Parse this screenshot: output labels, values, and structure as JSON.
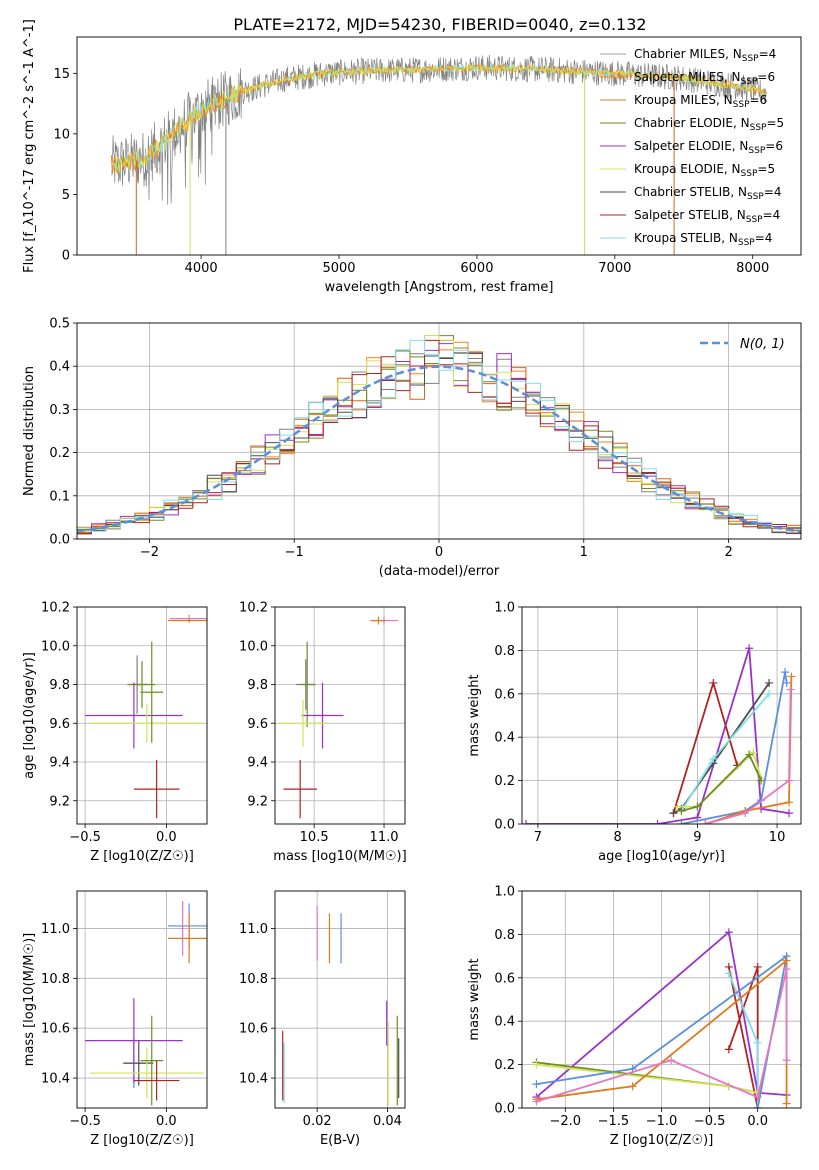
{
  "figure_title": "PLATE=2172, MJD=54230, FIBERID=0040, z=0.132",
  "colors": {
    "chabrier_miles": "#808080",
    "salpeter_miles": "#ff7f0e",
    "kroupa_miles": "#d2691e",
    "chabrier_elodie": "#6b8e23",
    "salpeter_elodie": "#9932cc",
    "kroupa_elodie": "#d4e157",
    "chabrier_stelib": "#4d4d4d",
    "salpeter_stelib": "#b22222",
    "kroupa_stelib": "#80deea",
    "gauss": "#5b8fd9",
    "pink": "#e377c2",
    "blue": "#5b8fd9",
    "orange": "#e07b1c"
  },
  "chart_data": [
    {
      "id": "spectrum",
      "type": "line",
      "xlabel": "wavelength [Angstrom, rest frame]",
      "ylabel": "Flux [f_λ10^-17 erg cm^-2 s^-1 A^-1]",
      "xlim": [
        3100,
        8350
      ],
      "ylim": [
        0,
        18
      ],
      "xticks": [
        4000,
        5000,
        6000,
        7000,
        8000
      ],
      "yticks": [
        0,
        5,
        10,
        15
      ],
      "grid": false,
      "legend_position": "right",
      "legend": [
        {
          "label": "Chabrier MILES, N",
          "sub": "SSP",
          "eq": "=4",
          "color": "#a0a0a0"
        },
        {
          "label": "Salpeter MILES, N",
          "sub": "SSP",
          "eq": "=6",
          "color": "#ff7f0e"
        },
        {
          "label": "Kroupa MILES, N",
          "sub": "SSP",
          "eq": "=6",
          "color": "#c8861c"
        },
        {
          "label": "Chabrier ELODIE, N",
          "sub": "SSP",
          "eq": "=5",
          "color": "#6b8e23"
        },
        {
          "label": "Salpeter ELODIE, N",
          "sub": "SSP",
          "eq": "=6",
          "color": "#9932cc"
        },
        {
          "label": "Kroupa ELODIE, N",
          "sub": "SSP",
          "eq": "=5",
          "color": "#d4e157"
        },
        {
          "label": "Chabrier STELIB, N",
          "sub": "SSP",
          "eq": "=4",
          "color": "#4d4d4d"
        },
        {
          "label": "Salpeter STELIB, N",
          "sub": "SSP",
          "eq": "=4",
          "color": "#b22222"
        },
        {
          "label": "Kroupa STELIB, N",
          "sub": "SSP",
          "eq": "=4",
          "color": "#80deea"
        }
      ],
      "continuum": {
        "x": [
          3400,
          3600,
          3800,
          4000,
          4300,
          4600,
          4900,
          5200,
          5600,
          6000,
          6500,
          7000,
          7500,
          8000,
          8100
        ],
        "y": [
          7.5,
          8.0,
          10.0,
          12.0,
          13.5,
          14.5,
          15.0,
          15.2,
          15.3,
          15.5,
          15.3,
          15.0,
          14.6,
          13.7,
          13.3
        ]
      },
      "spectrum_x_range": [
        3350,
        8100
      ],
      "model_x_range": [
        3350,
        8100
      ],
      "dropouts": [
        {
          "x": 3530,
          "color": "#d2691e"
        },
        {
          "x": 3920,
          "color": "#d4e157"
        },
        {
          "x": 4180,
          "color": "#808080"
        },
        {
          "x": 6780,
          "color": "#d4e157"
        },
        {
          "x": 7430,
          "color": "#d2691e"
        }
      ]
    },
    {
      "id": "residual-hist",
      "type": "bar",
      "xlabel": "(data-model)/error",
      "ylabel": "Normed distribution",
      "xlim": [
        -2.5,
        2.5
      ],
      "ylim": [
        0,
        0.5
      ],
      "xticks": [
        -2,
        -1,
        0,
        1,
        2
      ],
      "yticks": [
        0.0,
        0.1,
        0.2,
        0.3,
        0.4,
        0.5
      ],
      "grid": true,
      "legend_position": "top-right",
      "gauss_label": "N(0, 1)",
      "bin_width": 0.1,
      "bin_start": -2.5
    },
    {
      "id": "age-vs-Z",
      "type": "scatter",
      "xlabel": "Z [log10(Z/Z☉)]",
      "ylabel": "age [log10(age/yr)]",
      "xlim": [
        -0.55,
        0.25
      ],
      "ylim": [
        9.08,
        10.2
      ],
      "xticks": [
        -0.5,
        0.0
      ],
      "yticks": [
        9.2,
        9.4,
        9.6,
        9.8,
        10.0,
        10.2
      ],
      "grid": true,
      "points": [
        {
          "x": -0.18,
          "y": 9.8,
          "xerr": 0.06,
          "yerr": 0.15,
          "color": "#808080"
        },
        {
          "x": -0.15,
          "y": 9.8,
          "xerr": 0.08,
          "yerr": 0.12,
          "color": "#6b8e23"
        },
        {
          "x": -0.2,
          "y": 9.64,
          "xerr": 0.3,
          "yerr": 0.17,
          "color": "#9932cc"
        },
        {
          "x": -0.12,
          "y": 9.6,
          "xerr": 0.35,
          "yerr": 0.1,
          "color": "#d4e157"
        },
        {
          "x": -0.09,
          "y": 9.76,
          "xerr": 0.07,
          "yerr": 0.26,
          "color": "#6b8e23"
        },
        {
          "x": -0.06,
          "y": 9.26,
          "xerr": 0.14,
          "yerr": 0.15,
          "color": "#b22222"
        },
        {
          "x": 0.14,
          "y": 10.14,
          "xerr": 0.12,
          "yerr": 0.02,
          "color": "#e377c2"
        },
        {
          "x": 0.14,
          "y": 10.13,
          "xerr": 0.13,
          "yerr": 0.01,
          "color": "#e07b1c"
        }
      ]
    },
    {
      "id": "age-vs-mass",
      "type": "scatter",
      "xlabel": "mass [log10(M/M☉)]",
      "ylabel": "",
      "xlim": [
        10.22,
        11.15
      ],
      "ylim": [
        9.08,
        10.2
      ],
      "xticks": [
        10.5,
        11.0
      ],
      "yticks": [
        9.2,
        9.4,
        9.6,
        9.8,
        10.0,
        10.2
      ],
      "grid": true,
      "points": [
        {
          "x": 10.44,
          "y": 9.8,
          "xerr": 0.07,
          "yerr": 0.13,
          "color": "#808080"
        },
        {
          "x": 10.45,
          "y": 9.8,
          "xerr": 0.05,
          "yerr": 0.22,
          "color": "#6b8e23"
        },
        {
          "x": 10.56,
          "y": 9.64,
          "xerr": 0.15,
          "yerr": 0.17,
          "color": "#9932cc"
        },
        {
          "x": 10.42,
          "y": 9.6,
          "xerr": 0.17,
          "yerr": 0.12,
          "color": "#d4e157"
        },
        {
          "x": 10.4,
          "y": 9.26,
          "xerr": 0.12,
          "yerr": 0.15,
          "color": "#b22222"
        },
        {
          "x": 11.0,
          "y": 10.13,
          "xerr": 0.1,
          "yerr": 0.02,
          "color": "#e377c2"
        },
        {
          "x": 10.96,
          "y": 10.13,
          "xerr": 0.05,
          "yerr": 0.02,
          "color": "#e07b1c"
        }
      ]
    },
    {
      "id": "massweight-vs-age",
      "type": "line",
      "xlabel": "age [log10(age/yr)]",
      "ylabel": "mass weight",
      "xlim": [
        6.8,
        10.3
      ],
      "ylim": [
        0,
        1
      ],
      "xticks": [
        7,
        8,
        9,
        10
      ],
      "yticks": [
        0.0,
        0.2,
        0.4,
        0.6,
        0.8,
        1.0
      ],
      "grid": true,
      "series": [
        {
          "color": "#9932cc",
          "x": [
            6.85,
            8.5,
            9.0,
            9.65,
            9.8,
            10.15
          ],
          "y": [
            0.0,
            0.0,
            0.03,
            0.81,
            0.07,
            0.05
          ]
        },
        {
          "color": "#b22222",
          "x": [
            8.7,
            9.2,
            9.5
          ],
          "y": [
            0.05,
            0.65,
            0.27
          ]
        },
        {
          "color": "#4d4d4d",
          "x": [
            8.7,
            8.8,
            9.2,
            9.9
          ],
          "y": [
            0.05,
            0.07,
            0.28,
            0.65
          ]
        },
        {
          "color": "#80deea",
          "x": [
            8.8,
            9.2,
            9.9
          ],
          "y": [
            0.06,
            0.3,
            0.6
          ]
        },
        {
          "color": "#d4e157",
          "x": [
            8.75,
            9.0,
            9.7,
            9.8
          ],
          "y": [
            0.08,
            0.08,
            0.33,
            0.21
          ]
        },
        {
          "color": "#6b8e23",
          "x": [
            8.8,
            9.0,
            9.65,
            9.8
          ],
          "y": [
            0.06,
            0.08,
            0.32,
            0.2
          ]
        },
        {
          "color": "#5b8fd9",
          "x": [
            8.8,
            9.6,
            9.8,
            10.1,
            10.12
          ],
          "y": [
            0.0,
            0.06,
            0.11,
            0.7,
            0.65
          ]
        },
        {
          "color": "#e07b1c",
          "x": [
            9.1,
            9.6,
            10.15,
            10.18
          ],
          "y": [
            0.0,
            0.06,
            0.1,
            0.68
          ]
        },
        {
          "color": "#e377c2",
          "x": [
            9.1,
            9.6,
            10.15,
            10.17
          ],
          "y": [
            0.0,
            0.05,
            0.2,
            0.62
          ]
        }
      ]
    },
    {
      "id": "mass-vs-Z",
      "type": "scatter",
      "xlabel": "Z [log10(Z/Z☉)]",
      "ylabel": "mass [log10(M/M☉)]",
      "xlim": [
        -0.55,
        0.25
      ],
      "ylim": [
        10.28,
        11.15
      ],
      "xticks": [
        -0.5,
        0.0
      ],
      "yticks": [
        10.4,
        10.6,
        10.8,
        11.0
      ],
      "grid": true,
      "points": [
        {
          "x": -0.2,
          "y": 10.46,
          "xerr": 0.07,
          "yerr": 0.1,
          "color": "#5b8fd9"
        },
        {
          "x": -0.17,
          "y": 10.46,
          "xerr": 0.09,
          "yerr": 0.09,
          "color": "#4d4d4d"
        },
        {
          "x": -0.2,
          "y": 10.55,
          "xerr": 0.3,
          "yerr": 0.17,
          "color": "#9932cc"
        },
        {
          "x": -0.12,
          "y": 10.42,
          "xerr": 0.35,
          "yerr": 0.1,
          "color": "#d4e157"
        },
        {
          "x": -0.09,
          "y": 10.47,
          "xerr": 0.07,
          "yerr": 0.18,
          "color": "#6b8e23"
        },
        {
          "x": -0.06,
          "y": 10.39,
          "xerr": 0.14,
          "yerr": 0.08,
          "color": "#b22222"
        },
        {
          "x": 0.14,
          "y": 11.01,
          "xerr": 0.13,
          "yerr": 0.09,
          "color": "#5b8fd9"
        },
        {
          "x": 0.14,
          "y": 10.96,
          "xerr": 0.13,
          "yerr": 0.1,
          "color": "#e07b1c"
        },
        {
          "x": 0.1,
          "y": 11.0,
          "xerr": 0.01,
          "yerr": 0.11,
          "color": "#e377c2"
        }
      ]
    },
    {
      "id": "mass-vs-ebv",
      "type": "scatter",
      "xlabel": "E(B-V)",
      "ylabel": "",
      "xlim": [
        0.008,
        0.045
      ],
      "ylim": [
        10.28,
        11.15
      ],
      "xticks": [
        0.02,
        0.04
      ],
      "yticks": [
        10.4,
        10.6,
        10.8,
        11.0
      ],
      "grid": true,
      "points": [
        {
          "x": 0.02,
          "y": 10.98,
          "xerr": 0,
          "yerr": 0.11,
          "color": "#e377c2"
        },
        {
          "x": 0.0235,
          "y": 10.96,
          "xerr": 0,
          "yerr": 0.1,
          "color": "#e07b1c"
        },
        {
          "x": 0.0268,
          "y": 10.96,
          "xerr": 0,
          "yerr": 0.1,
          "color": "#5b8fd9"
        },
        {
          "x": 0.0102,
          "y": 10.45,
          "xerr": 0,
          "yerr": 0.14,
          "color": "#b22222"
        },
        {
          "x": 0.0106,
          "y": 10.42,
          "xerr": 0,
          "yerr": 0.12,
          "color": "#80deea"
        },
        {
          "x": 0.0398,
          "y": 10.62,
          "xerr": 0,
          "yerr": 0.09,
          "color": "#9932cc"
        },
        {
          "x": 0.0402,
          "y": 10.46,
          "xerr": 0,
          "yerr": 0.17,
          "color": "#d4e157"
        },
        {
          "x": 0.0428,
          "y": 10.47,
          "xerr": 0,
          "yerr": 0.18,
          "color": "#6b8e23"
        },
        {
          "x": 0.0432,
          "y": 10.44,
          "xerr": 0,
          "yerr": 0.12,
          "color": "#4d4d4d"
        }
      ]
    },
    {
      "id": "massweight-vs-Z",
      "type": "line",
      "xlabel": "Z [log10(Z/Z☉)]",
      "ylabel": "mass weight",
      "xlim": [
        -2.45,
        0.45
      ],
      "ylim": [
        0,
        1
      ],
      "xticks": [
        -2.0,
        -1.5,
        -1.0,
        -0.5,
        0.0
      ],
      "yticks": [
        0.0,
        0.2,
        0.4,
        0.6,
        0.8,
        1.0
      ],
      "grid": true,
      "series": [
        {
          "color": "#9932cc",
          "x": [
            -2.3,
            -0.3,
            0.0,
            0.3
          ],
          "y": [
            0.05,
            0.81,
            0.07,
            0.06
          ]
        },
        {
          "color": "#b22222",
          "x": [
            -0.3,
            0.0,
            0.0,
            -0.3
          ],
          "y": [
            0.27,
            0.65,
            0.0,
            0.65
          ]
        },
        {
          "color": "#80deea",
          "x": [
            -0.3,
            0.0,
            0.0
          ],
          "y": [
            0.62,
            0.3,
            0.0
          ]
        },
        {
          "color": "#6b8e23",
          "x": [
            -2.3,
            -0.3,
            0.0
          ],
          "y": [
            0.21,
            0.1,
            0.07
          ]
        },
        {
          "color": "#d4e157",
          "x": [
            -2.3,
            -0.3,
            0.0
          ],
          "y": [
            0.2,
            0.1,
            0.07
          ]
        },
        {
          "color": "#5b8fd9",
          "x": [
            -2.3,
            -1.3,
            0.3,
            0.0
          ],
          "y": [
            0.11,
            0.18,
            0.7,
            0.0
          ]
        },
        {
          "color": "#e07b1c",
          "x": [
            -2.3,
            -1.3,
            0.3,
            0.3
          ],
          "y": [
            0.04,
            0.1,
            0.68,
            0.02
          ]
        },
        {
          "color": "#e377c2",
          "x": [
            -2.3,
            -0.9,
            0.0,
            0.3,
            0.3
          ],
          "y": [
            0.03,
            0.22,
            0.05,
            0.64,
            0.22
          ]
        }
      ]
    }
  ]
}
